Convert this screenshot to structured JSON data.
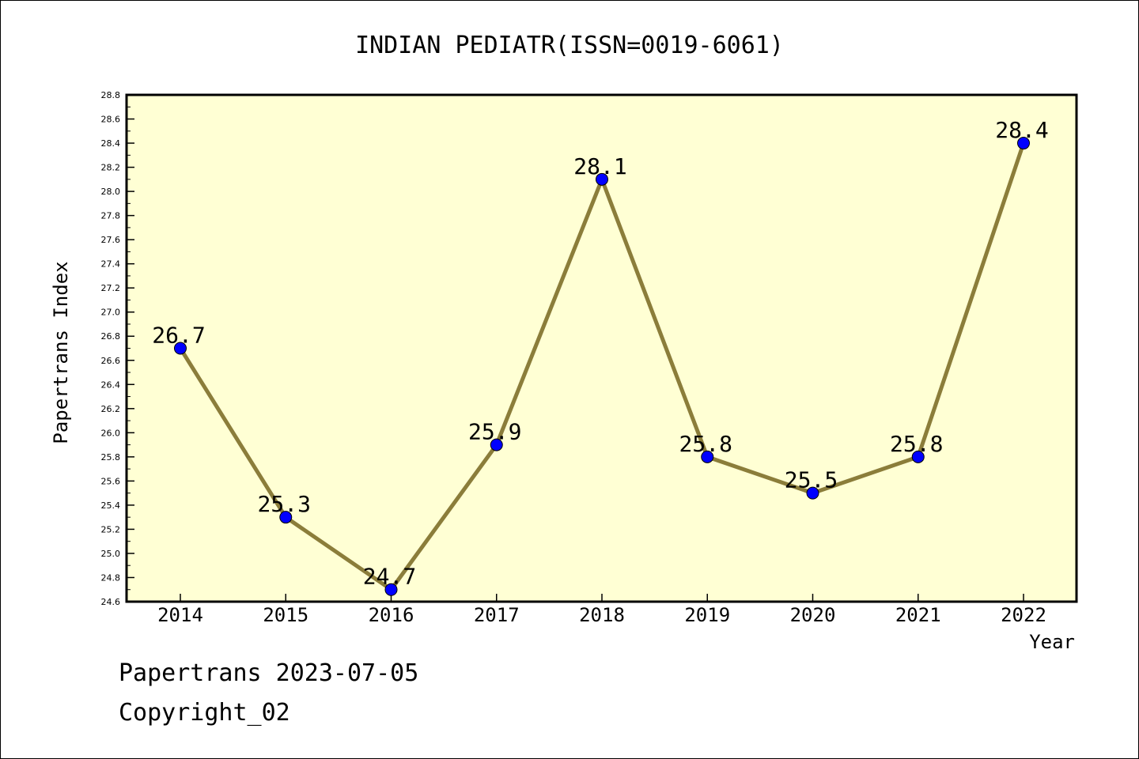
{
  "chart_data": {
    "type": "line",
    "title": "INDIAN PEDIATR(ISSN=0019-6061)",
    "xlabel": "Year",
    "ylabel": "Papertrans Index",
    "categories": [
      "2014",
      "2015",
      "2016",
      "2017",
      "2018",
      "2019",
      "2020",
      "2021",
      "2022"
    ],
    "values": [
      26.7,
      25.3,
      24.7,
      25.9,
      28.1,
      25.8,
      25.5,
      25.8,
      28.4
    ],
    "data_labels": [
      "26.7",
      "25.3",
      "24.7",
      "25.9",
      "28.1",
      "25.8",
      "25.5",
      "25.8",
      "28.4"
    ],
    "ylim": [
      24.6,
      28.8
    ],
    "y_ticks": [
      "24.6",
      "24.8",
      "25.0",
      "25.2",
      "25.4",
      "25.6",
      "25.8",
      "26.0",
      "26.2",
      "26.4",
      "26.6",
      "26.8",
      "27.0",
      "27.2",
      "27.4",
      "27.6",
      "27.8",
      "28.0",
      "28.2",
      "28.4",
      "28.6",
      "28.8"
    ],
    "grid": false,
    "colors": {
      "plot_background": "#ffffd4",
      "line": "#8b7d3a",
      "marker": "#0000ff"
    }
  },
  "footer": {
    "line1": "Papertrans 2023-07-05",
    "line2": "Copyright_02"
  }
}
